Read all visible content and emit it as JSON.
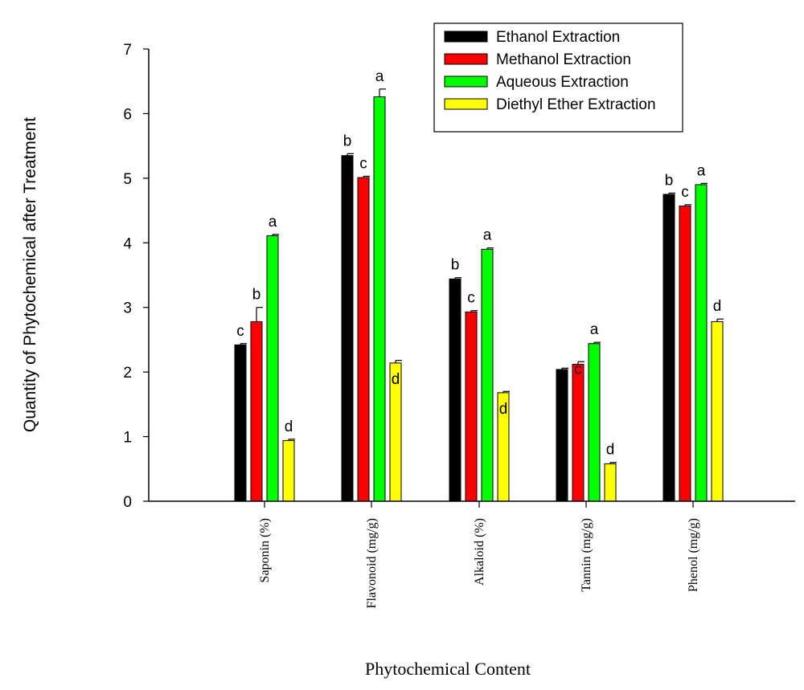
{
  "chart_data": {
    "type": "bar",
    "title": "",
    "xlabel": "Phytochemical Content",
    "ylabel": "Quantity of Phytochemical after Treatment",
    "ylim": [
      0,
      7
    ],
    "yticks": [
      0,
      1,
      2,
      3,
      4,
      5,
      6,
      7
    ],
    "grid": false,
    "legend_position": "top-right",
    "categories": [
      "Saponin (%)",
      "Flavonoid (mg/g)",
      "Alkaloid (%)",
      "Tannin (mg/g)",
      "Phenol (mg/g)"
    ],
    "series": [
      {
        "name": "Ethanol Extraction",
        "color": "#000000",
        "values": [
          2.42,
          5.35,
          3.44,
          2.04,
          4.75
        ],
        "errors": [
          0.02,
          0.03,
          0.02,
          0.02,
          0.02
        ],
        "letters": [
          "c",
          "b",
          "b",
          "",
          "b"
        ]
      },
      {
        "name": "Methanol Extraction",
        "color": "#ff0000",
        "values": [
          2.78,
          5.01,
          2.93,
          2.12,
          4.57
        ],
        "errors": [
          0.22,
          0.02,
          0.02,
          0.04,
          0.02
        ],
        "letters": [
          "b",
          "c",
          "c",
          "c",
          "c"
        ]
      },
      {
        "name": "Aqueous Extraction",
        "color": "#00ff00",
        "values": [
          4.11,
          6.26,
          3.9,
          2.44,
          4.9
        ],
        "errors": [
          0.02,
          0.12,
          0.02,
          0.02,
          0.02
        ],
        "letters": [
          "a",
          "a",
          "a",
          "a",
          "a"
        ]
      },
      {
        "name": "Diethyl Ether Extraction",
        "color": "#ffff00",
        "values": [
          0.94,
          2.14,
          1.68,
          0.58,
          2.78
        ],
        "errors": [
          0.02,
          0.04,
          0.02,
          0.02,
          0.04
        ],
        "letters": [
          "d",
          "d",
          "d",
          "d",
          "d"
        ]
      }
    ]
  }
}
